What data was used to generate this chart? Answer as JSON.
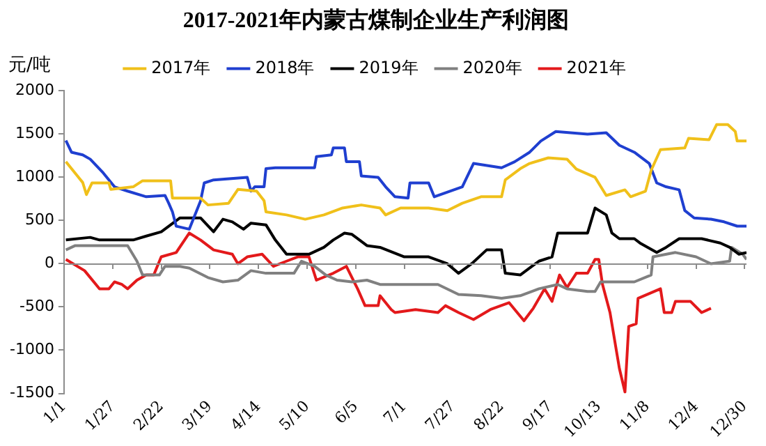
{
  "chart_data": {
    "type": "line",
    "title": "2017-2021年内蒙古煤制企业生产利润图",
    "ylabel": "元/吨",
    "legend": "top",
    "grid": false,
    "marker": "none",
    "line_style": "solid",
    "xlim": [
      "--01-01",
      "--12-31"
    ],
    "xticks": [
      {
        "value": "--01-01",
        "label": "1/1"
      },
      {
        "value": "--01-27",
        "label": "1/27"
      },
      {
        "value": "--02-22",
        "label": "2/22"
      },
      {
        "value": "--03-19",
        "label": "3/19"
      },
      {
        "value": "--04-14",
        "label": "4/14"
      },
      {
        "value": "--05-10",
        "label": "5/10"
      },
      {
        "value": "--06-05",
        "label": "6/5"
      },
      {
        "value": "--07-01",
        "label": "7/1"
      },
      {
        "value": "--07-27",
        "label": "7/27"
      },
      {
        "value": "--08-22",
        "label": "8/22"
      },
      {
        "value": "--09-17",
        "label": "9/17"
      },
      {
        "value": "--10-13",
        "label": "10/13"
      },
      {
        "value": "--11-08",
        "label": "11/8"
      },
      {
        "value": "--12-04",
        "label": "12/4"
      },
      {
        "value": "--12-30",
        "label": "12/30"
      }
    ],
    "ref_lines": [
      {
        "axis": "y",
        "value": 0,
        "color": "#8c8c8c"
      }
    ],
    "ylim": [
      -1500,
      2000
    ],
    "yticks": [
      -1500,
      -1000,
      -500,
      0,
      500,
      1000,
      1500,
      2000
    ],
    "series": [
      {
        "name": "2017年",
        "color": "#f0c01a",
        "x": [
          "--01-02",
          "--01-11",
          "--01-13",
          "--01-16",
          "--01-25",
          "--01-26",
          "--02-07",
          "--02-12",
          "--02-27",
          "--02-28",
          "--03-14",
          "--03-18",
          "--03-29",
          "--04-03",
          "--04-13",
          "--04-17",
          "--04-18",
          "--04-29",
          "--05-09",
          "--05-19",
          "--05-29",
          "--06-08",
          "--06-18",
          "--06-21",
          "--06-29",
          "--07-14",
          "--07-24",
          "--08-01",
          "--08-11",
          "--08-22",
          "--08-24",
          "--09-01",
          "--09-06",
          "--09-16",
          "--09-26",
          "--10-01",
          "--10-11",
          "--10-17",
          "--10-27",
          "--10-30",
          "--11-07",
          "--11-10",
          "--11-15",
          "--11-28",
          "--11-30",
          "--12-11",
          "--12-15",
          "--12-21",
          "--12-25",
          "--12-26",
          "--12-31"
        ],
        "values": [
          1180,
          940,
          800,
          935,
          935,
          860,
          890,
          960,
          960,
          760,
          760,
          680,
          700,
          860,
          840,
          730,
          600,
          565,
          515,
          565,
          645,
          680,
          645,
          565,
          645,
          645,
          615,
          700,
          775,
          775,
          970,
          1100,
          1160,
          1225,
          1210,
          1095,
          1000,
          790,
          855,
          775,
          840,
          1080,
          1320,
          1340,
          1450,
          1435,
          1610,
          1610,
          1530,
          1420,
          1420
        ]
      },
      {
        "name": "2018年",
        "color": "#1f3fd0",
        "x": [
          "--01-02",
          "--01-05",
          "--01-11",
          "--01-15",
          "--01-22",
          "--01-28",
          "--02-04",
          "--02-14",
          "--02-24",
          "--02-26",
          "--02-28",
          "--03-01",
          "--03-08",
          "--03-14",
          "--03-16",
          "--03-21",
          "--04-08",
          "--04-10",
          "--04-12",
          "--04-17",
          "--04-18",
          "--04-23",
          "--05-14",
          "--05-15",
          "--05-23",
          "--05-24",
          "--05-30",
          "--05-31",
          "--06-07",
          "--06-08",
          "--06-17",
          "--06-21",
          "--06-26",
          "--07-03",
          "--07-04",
          "--07-14",
          "--07-17",
          "--08-01",
          "--08-07",
          "--08-22",
          "--08-29",
          "--09-06",
          "--09-12",
          "--09-20",
          "--10-07",
          "--10-17",
          "--10-24",
          "--11-01",
          "--11-09",
          "--11-13",
          "--11-18",
          "--11-25",
          "--11-28",
          "--12-03",
          "--12-12",
          "--12-19",
          "--12-26",
          "--12-31"
        ],
        "values": [
          1425,
          1290,
          1260,
          1210,
          1050,
          890,
          840,
          775,
          790,
          700,
          600,
          435,
          400,
          725,
          935,
          970,
          1000,
          840,
          890,
          890,
          1100,
          1110,
          1110,
          1240,
          1260,
          1340,
          1340,
          1180,
          1180,
          1015,
          1000,
          890,
          775,
          760,
          935,
          935,
          775,
          890,
          1160,
          1110,
          1180,
          1290,
          1420,
          1530,
          1500,
          1515,
          1370,
          1290,
          1160,
          935,
          890,
          855,
          615,
          530,
          515,
          485,
          435,
          435
        ]
      },
      {
        "name": "2019年",
        "color": "#000000",
        "x": [
          "--01-02",
          "--01-15",
          "--01-20",
          "--02-07",
          "--02-14",
          "--02-22",
          "--03-03",
          "--03-14",
          "--03-21",
          "--03-26",
          "--03-31",
          "--04-06",
          "--04-10",
          "--04-18",
          "--04-23",
          "--04-29",
          "--05-11",
          "--05-19",
          "--05-24",
          "--05-30",
          "--06-03",
          "--06-11",
          "--06-18",
          "--07-01",
          "--07-14",
          "--07-24",
          "--07-30",
          "--08-06",
          "--08-14",
          "--08-22",
          "--08-24",
          "--09-01",
          "--09-11",
          "--09-18",
          "--09-21",
          "--10-07",
          "--10-11",
          "--10-17",
          "--10-20",
          "--10-24",
          "--11-01",
          "--11-04",
          "--11-13",
          "--11-18",
          "--11-25",
          "--12-07",
          "--12-17",
          "--12-22",
          "--12-27",
          "--12-31"
        ],
        "values": [
          275,
          305,
          275,
          275,
          320,
          370,
          530,
          530,
          370,
          515,
          485,
          400,
          470,
          450,
          275,
          110,
          110,
          190,
          275,
          355,
          340,
          210,
          190,
          80,
          80,
          0,
          -110,
          0,
          160,
          160,
          -110,
          -130,
          30,
          80,
          355,
          355,
          645,
          565,
          355,
          290,
          290,
          240,
          130,
          190,
          290,
          290,
          240,
          190,
          110,
          130
        ]
      },
      {
        "name": "2020年",
        "color": "#808080",
        "x": [
          "--01-02",
          "--01-07",
          "--02-04",
          "--02-09",
          "--02-12",
          "--02-21",
          "--02-24",
          "--03-03",
          "--03-08",
          "--03-18",
          "--03-26",
          "--04-03",
          "--04-10",
          "--04-18",
          "--05-03",
          "--05-07",
          "--05-14",
          "--05-20",
          "--05-26",
          "--06-03",
          "--06-11",
          "--06-18",
          "--07-04",
          "--07-19",
          "--07-30",
          "--08-11",
          "--08-22",
          "--09-01",
          "--09-11",
          "--09-21",
          "--09-26",
          "--10-07",
          "--10-11",
          "--10-14",
          "--11-01",
          "--11-10",
          "--11-11",
          "--11-23",
          "--12-04",
          "--12-12",
          "--12-22",
          "--12-23",
          "--12-29",
          "--12-31"
        ],
        "values": [
          160,
          210,
          210,
          30,
          -130,
          -130,
          -30,
          -30,
          -50,
          -160,
          -210,
          -190,
          -80,
          -110,
          -110,
          30,
          -30,
          -130,
          -190,
          -210,
          -190,
          -240,
          -240,
          -240,
          -355,
          -370,
          -400,
          -370,
          -290,
          -240,
          -290,
          -320,
          -320,
          -210,
          -210,
          -130,
          80,
          130,
          80,
          0,
          30,
          190,
          110,
          50
        ]
      },
      {
        "name": "2021年",
        "color": "#e3191b",
        "x": [
          "--01-02",
          "--01-12",
          "--01-20",
          "--01-25",
          "--01-28",
          "--02-01",
          "--02-04",
          "--02-09",
          "--02-14",
          "--02-18",
          "--02-22",
          "--03-01",
          "--03-08",
          "--03-14",
          "--03-21",
          "--03-31",
          "--04-03",
          "--04-08",
          "--04-16",
          "--04-22",
          "--04-29",
          "--05-05",
          "--05-11",
          "--05-15",
          "--05-24",
          "--05-31",
          "--06-06",
          "--06-10",
          "--06-17",
          "--06-18",
          "--06-24",
          "--06-26",
          "--07-07",
          "--07-19",
          "--07-23",
          "--07-30",
          "--08-07",
          "--08-16",
          "--08-26",
          "--09-03",
          "--09-08",
          "--09-14",
          "--09-18",
          "--09-22",
          "--09-26",
          "--10-01",
          "--10-07",
          "--10-11",
          "--10-13",
          "--10-15",
          "--10-19",
          "--10-24",
          "--10-27",
          "--10-29",
          "--11-02",
          "--11-03",
          "--11-15",
          "--11-17",
          "--11-21",
          "--11-23",
          "--12-01",
          "--12-07",
          "--12-12"
        ],
        "values": [
          50,
          -80,
          -290,
          -290,
          -210,
          -240,
          -290,
          -190,
          -130,
          -130,
          80,
          130,
          355,
          275,
          160,
          110,
          0,
          80,
          110,
          -30,
          30,
          80,
          80,
          -190,
          -110,
          -30,
          -290,
          -485,
          -485,
          -370,
          -530,
          -565,
          -530,
          -565,
          -485,
          -565,
          -645,
          -530,
          -450,
          -660,
          -515,
          -290,
          -435,
          -130,
          -275,
          -110,
          -110,
          50,
          50,
          -240,
          -565,
          -1210,
          -1485,
          -725,
          -695,
          -400,
          -290,
          -565,
          -565,
          -435,
          -435,
          -565,
          -515
        ]
      }
    ]
  }
}
